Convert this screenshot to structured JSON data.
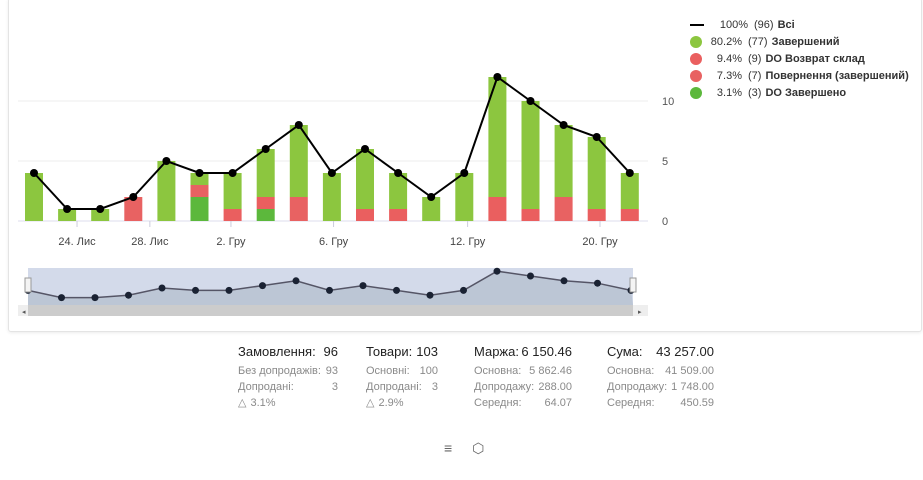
{
  "chart_data": {
    "type": "bar",
    "stacked": true,
    "yaxis": {
      "ticks": [
        0,
        5,
        10
      ],
      "position": "right",
      "ylim": [
        0,
        12.5
      ]
    },
    "xaxis": {
      "tick_labels": [
        "24. Лис",
        "28. Лис",
        "2. Гру",
        "6. Гру",
        "12. Гру",
        "20. Гру"
      ]
    },
    "series": [
      {
        "name": "Завершений",
        "color": "#8cc63f",
        "values": [
          4,
          1,
          1,
          0,
          5,
          1,
          3,
          4,
          6,
          4,
          5,
          3,
          2,
          4,
          10,
          9,
          6,
          6,
          3
        ]
      },
      {
        "name": "DO Возврат склад",
        "color": "#ea5f5f",
        "values": [
          0,
          0,
          0,
          0,
          0,
          0,
          1,
          1,
          0,
          0,
          1,
          1,
          0,
          0,
          2,
          1,
          0,
          1,
          1
        ]
      },
      {
        "name": "Повернення (завершений)",
        "color": "#e86262",
        "values": [
          0,
          0,
          0,
          2,
          0,
          1,
          0,
          0,
          2,
          0,
          0,
          0,
          0,
          0,
          0,
          0,
          2,
          0,
          0
        ]
      },
      {
        "name": "DO Завершено",
        "color": "#5cb83c",
        "values": [
          0,
          0,
          0,
          0,
          0,
          2,
          0,
          1,
          0,
          0,
          0,
          0,
          0,
          0,
          0,
          0,
          0,
          0,
          0
        ]
      }
    ],
    "total": {
      "name": "Всі",
      "color": "#000000",
      "values": [
        4,
        1,
        1,
        2,
        5,
        4,
        4,
        6,
        8,
        4,
        6,
        4,
        2,
        4,
        12,
        10,
        8,
        7,
        4
      ]
    },
    "grid": true
  },
  "legend": [
    {
      "pct": "100%",
      "count": "(96)",
      "name": "Всі",
      "color": "#000000",
      "type": "line"
    },
    {
      "pct": "80.2%",
      "count": "(77)",
      "name": "Завершений",
      "color": "#8cc63f"
    },
    {
      "pct": "9.4%",
      "count": "(9)",
      "name": "DO Возврат склад",
      "color": "#ea5f5f"
    },
    {
      "pct": "7.3%",
      "count": "(7)",
      "name": "Повернення (завершений)",
      "color": "#e86262"
    },
    {
      "pct": "3.1%",
      "count": "(3)",
      "name": "DO Завершено",
      "color": "#5cb83c"
    }
  ],
  "stats": {
    "orders": {
      "label": "Замовлення:",
      "value": "96",
      "rows": [
        [
          "Без допродажів:",
          "93"
        ],
        [
          "Допродані:",
          "3"
        ]
      ],
      "pct": "3.1%"
    },
    "goods": {
      "label": "Товари:",
      "value": "103",
      "rows": [
        [
          "Основні:",
          "100"
        ],
        [
          "Допродані:",
          "3"
        ]
      ],
      "pct": "2.9%"
    },
    "margin": {
      "label": "Маржа:",
      "value": "6 150.46",
      "rows": [
        [
          "Основна:",
          "5 862.46"
        ],
        [
          "Допродажу:",
          "288.00"
        ],
        [
          "Середня:",
          "64.07"
        ]
      ]
    },
    "sum": {
      "label": "Сума:",
      "value": "43 257.00",
      "rows": [
        [
          "Основна:",
          "41 509.00"
        ],
        [
          "Допродажу:",
          "1 748.00"
        ],
        [
          "Середня:",
          "450.59"
        ]
      ]
    }
  },
  "icons": {
    "list": "list-ordered-icon",
    "box": "box-icon",
    "basket": "basket-percent-icon"
  }
}
